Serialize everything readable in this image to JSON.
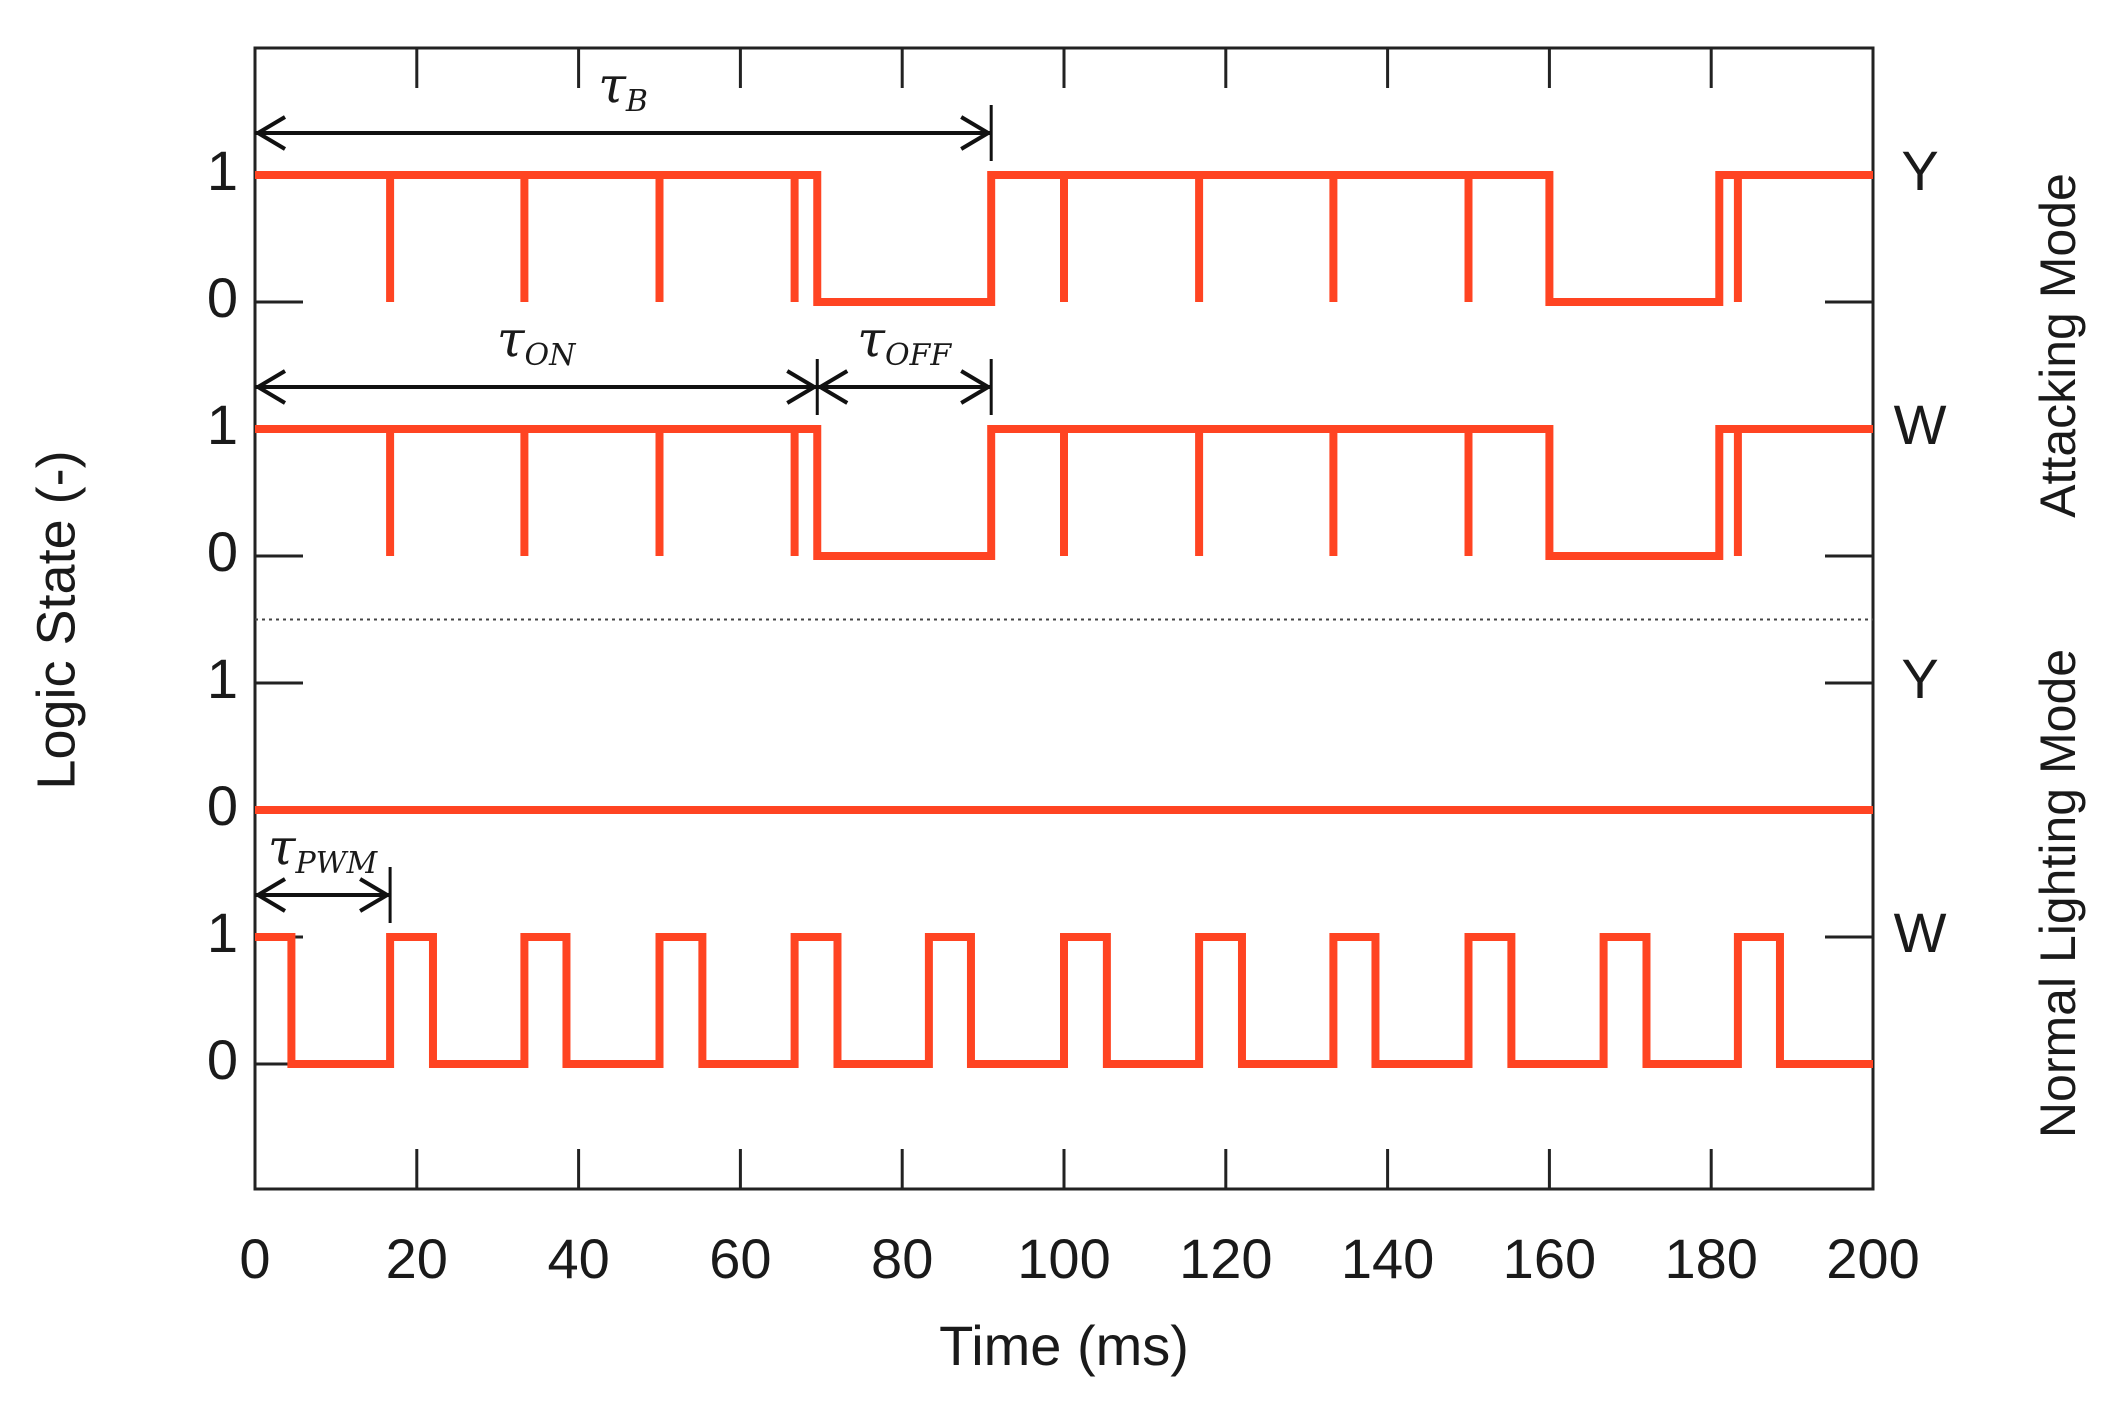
{
  "chart_data": {
    "type": "step",
    "xlabel": "Time (ms)",
    "ylabel": "Logic State (-)",
    "xlim": [
      0,
      200
    ],
    "xticks": [
      0,
      20,
      40,
      60,
      80,
      100,
      120,
      140,
      160,
      180,
      200
    ],
    "ylim": [
      0,
      1
    ],
    "yticks": [
      0,
      1
    ],
    "groups": [
      {
        "label": "Attacking Mode"
      },
      {
        "label": "Normal Lighting Mode"
      }
    ],
    "series": [
      {
        "name": "Y",
        "group": 0,
        "color": "#ff4422",
        "x": [
          0,
          16.7,
          16.7,
          16.7,
          33.3,
          33.3,
          33.3,
          50,
          50,
          50,
          66.7,
          66.7,
          66.7,
          69.5,
          69.5,
          91,
          91,
          100,
          100,
          100,
          116.7,
          116.7,
          116.7,
          133.3,
          133.3,
          133.3,
          150,
          150,
          150,
          160,
          160,
          181,
          181,
          183.3,
          183.3,
          183.3,
          200
        ],
        "values": [
          1,
          1,
          0,
          1,
          1,
          0,
          1,
          1,
          0,
          1,
          1,
          0,
          1,
          1,
          0,
          0,
          1,
          1,
          0,
          1,
          1,
          0,
          1,
          1,
          0,
          1,
          1,
          0,
          1,
          1,
          0,
          0,
          1,
          1,
          0,
          1,
          1
        ],
        "annotations": [
          {
            "symbol": "τ",
            "subscript": "B",
            "x": [
              0,
              91
            ]
          }
        ]
      },
      {
        "name": "W",
        "group": 0,
        "color": "#ff4422",
        "x": [
          0,
          16.7,
          16.7,
          16.7,
          33.3,
          33.3,
          33.3,
          50,
          50,
          50,
          66.7,
          66.7,
          66.7,
          69.5,
          69.5,
          91,
          91,
          100,
          100,
          100,
          116.7,
          116.7,
          116.7,
          133.3,
          133.3,
          133.3,
          150,
          150,
          150,
          160,
          160,
          181,
          181,
          183.3,
          183.3,
          183.3,
          200
        ],
        "values": [
          1,
          1,
          0,
          1,
          1,
          0,
          1,
          1,
          0,
          1,
          1,
          0,
          1,
          1,
          0,
          0,
          1,
          1,
          0,
          1,
          1,
          0,
          1,
          1,
          0,
          1,
          1,
          0,
          1,
          1,
          0,
          0,
          1,
          1,
          0,
          1,
          1
        ],
        "annotations": [
          {
            "symbol": "τ",
            "subscript": "ON",
            "x": [
              0,
              69.5
            ]
          },
          {
            "symbol": "τ",
            "subscript": "OFF",
            "x": [
              69.5,
              91
            ]
          }
        ]
      },
      {
        "name": "Y",
        "group": 1,
        "color": "#ff4422",
        "x": [
          0,
          200
        ],
        "values": [
          0,
          0
        ],
        "annotations": []
      },
      {
        "name": "W",
        "group": 1,
        "color": "#ff4422",
        "x": [
          0,
          4.5,
          4.5,
          16.7,
          16.7,
          22,
          22,
          33.3,
          33.3,
          38.5,
          38.5,
          50,
          50,
          55.3,
          55.3,
          66.7,
          66.7,
          72,
          72,
          83.3,
          83.3,
          88.5,
          88.5,
          100,
          100,
          105.3,
          105.3,
          116.7,
          116.7,
          122,
          122,
          133.3,
          133.3,
          138.5,
          138.5,
          150,
          150,
          155.3,
          155.3,
          166.7,
          166.7,
          172,
          172,
          183.3,
          183.3,
          188.5,
          188.5,
          200
        ],
        "values": [
          1,
          1,
          0,
          0,
          1,
          1,
          0,
          0,
          1,
          1,
          0,
          0,
          1,
          1,
          0,
          0,
          1,
          1,
          0,
          0,
          1,
          1,
          0,
          0,
          1,
          1,
          0,
          0,
          1,
          1,
          0,
          0,
          1,
          1,
          0,
          0,
          1,
          1,
          0,
          0,
          1,
          1,
          0,
          0,
          1,
          1,
          0,
          0
        ],
        "annotations": [
          {
            "symbol": "τ",
            "subscript": "PWM",
            "x": [
              0,
              16.7
            ]
          }
        ]
      }
    ]
  }
}
